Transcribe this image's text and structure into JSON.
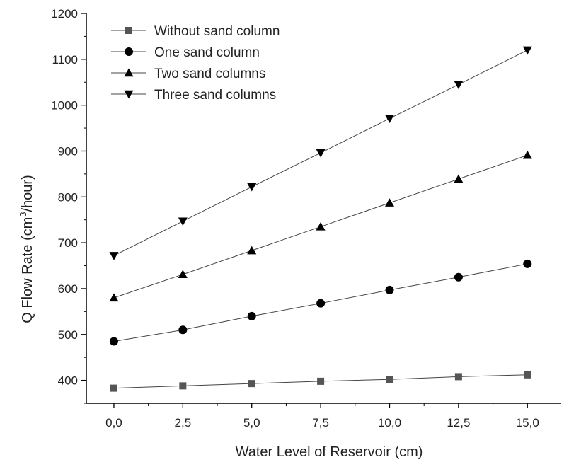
{
  "chart_data": {
    "type": "line",
    "xlabel": "Water Level of Reservoir (cm)",
    "ylabel_main": "Q Flow Rate (cm",
    "ylabel_sup": "3",
    "ylabel_tail": "/hour)",
    "xlim": [
      -1.0,
      16.2
    ],
    "ylim": [
      350,
      1200
    ],
    "x_ticks": [
      0,
      2.5,
      5,
      7.5,
      10,
      12.5,
      15
    ],
    "x_tick_labels": [
      "0,0",
      "2,5",
      "5,0",
      "7,5",
      "10,0",
      "12,5",
      "15,0"
    ],
    "y_ticks": [
      400,
      500,
      600,
      700,
      800,
      900,
      1000,
      1100,
      1200
    ],
    "y_tick_labels": [
      "400",
      "500",
      "600",
      "700",
      "800",
      "900",
      "1000",
      "1100",
      "1200"
    ],
    "legend_position": "top-left",
    "grid": false,
    "x": [
      0,
      2.5,
      5,
      7.5,
      10,
      12.5,
      15
    ],
    "series": [
      {
        "name": "Without sand column",
        "marker": "square",
        "color": "#555555",
        "values": [
          383,
          388,
          393,
          398,
          402,
          408,
          412
        ]
      },
      {
        "name": "One sand column",
        "marker": "circle",
        "color": "#000000",
        "values": [
          485,
          510,
          540,
          568,
          597,
          625,
          654
        ]
      },
      {
        "name": "Two sand columns",
        "marker": "triangle-up",
        "color": "#000000",
        "values": [
          580,
          631,
          683,
          735,
          787,
          839,
          891
        ]
      },
      {
        "name": "Three sand columns",
        "marker": "triangle-down",
        "color": "#000000",
        "values": [
          672,
          747,
          822,
          896,
          971,
          1045,
          1120
        ]
      }
    ]
  }
}
